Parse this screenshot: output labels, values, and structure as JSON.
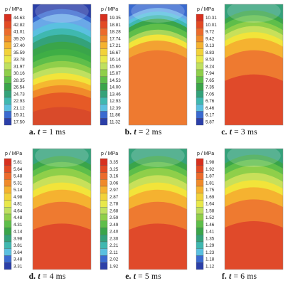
{
  "unit_label": "p / MPa",
  "panels": [
    {
      "caption": {
        "label": "a.",
        "t": "t",
        "eq": "= 1 ms"
      },
      "scale": [
        "44.63",
        "42.82",
        "41.01",
        "39.20",
        "37.40",
        "35.59",
        "33.78",
        "31.97",
        "30.16",
        "28.35",
        "26.54",
        "24.73",
        "22.93",
        "21.12",
        "19.31",
        "17.50"
      ],
      "bands": [
        {
          "color": "#d94a2a",
          "depth": 0.0
        },
        {
          "color": "#e65a26",
          "depth": 0.15
        },
        {
          "color": "#f08a2a",
          "depth": 0.27
        },
        {
          "color": "#f5b830",
          "depth": 0.33
        },
        {
          "color": "#f2e43a",
          "depth": 0.38
        },
        {
          "color": "#bfe060",
          "depth": 0.43
        },
        {
          "color": "#8fcf4a",
          "depth": 0.48
        },
        {
          "color": "#5ebe4a",
          "depth": 0.53
        },
        {
          "color": "#3fae45",
          "depth": 0.58
        },
        {
          "color": "#3aa54a",
          "depth": 0.63
        },
        {
          "color": "#34a27a",
          "depth": 0.69
        },
        {
          "color": "#3fb8b0",
          "depth": 0.75
        },
        {
          "color": "#5ac0e0",
          "depth": 0.8
        },
        {
          "color": "#6aa8e8",
          "depth": 0.85
        },
        {
          "color": "#3a6ad0",
          "depth": 0.92
        },
        {
          "color": "#2b3fa8",
          "depth": 0.96
        }
      ]
    },
    {
      "caption": {
        "label": "b.",
        "t": "t",
        "eq": "= 2 ms"
      },
      "scale": [
        "19.35",
        "18.81",
        "18.28",
        "17.74",
        "17.21",
        "16.67",
        "16.14",
        "15.60",
        "15.07",
        "14.53",
        "14.00",
        "13.46",
        "12.93",
        "12.39",
        "11.86",
        "11.32"
      ],
      "bands": [
        {
          "color": "#ee7a30",
          "depth": 0.0
        },
        {
          "color": "#f3a232",
          "depth": 0.62
        },
        {
          "color": "#f2e43a",
          "depth": 0.7
        },
        {
          "color": "#a8d65a",
          "depth": 0.75
        },
        {
          "color": "#5ebe4a",
          "depth": 0.79
        },
        {
          "color": "#3aa54a",
          "depth": 0.84
        },
        {
          "color": "#3fb8b0",
          "depth": 0.88
        },
        {
          "color": "#5ac0e0",
          "depth": 0.91
        },
        {
          "color": "#6aa8e8",
          "depth": 0.94
        },
        {
          "color": "#3a6ad0",
          "depth": 0.97
        }
      ]
    },
    {
      "caption": {
        "label": "c.",
        "t": "t",
        "eq": "= 3 ms"
      },
      "scale": [
        "10.31",
        "10.01",
        "9.72",
        "9.42",
        "9.13",
        "8.83",
        "8.53",
        "8.24",
        "7.94",
        "7.65",
        "7.35",
        "7.05",
        "6.76",
        "6.46",
        "6.17",
        "5.87"
      ],
      "bands": [
        {
          "color": "#e04a2a",
          "depth": 0.0
        },
        {
          "color": "#ee7a30",
          "depth": 0.42
        },
        {
          "color": "#f5b230",
          "depth": 0.62
        },
        {
          "color": "#f2e43a",
          "depth": 0.72
        },
        {
          "color": "#c8e05a",
          "depth": 0.77
        },
        {
          "color": "#8fcf4a",
          "depth": 0.82
        },
        {
          "color": "#5ebe4a",
          "depth": 0.86
        },
        {
          "color": "#3aa54a",
          "depth": 0.91
        },
        {
          "color": "#34a27a",
          "depth": 0.95
        }
      ]
    },
    {
      "caption": {
        "label": "d.",
        "t": "t",
        "eq": "= 4 ms"
      },
      "scale": [
        "5.81",
        "5.64",
        "5.48",
        "5.31",
        "5.14",
        "4.98",
        "4.81",
        "4.64",
        "4.48",
        "4.31",
        "4.14",
        "3.98",
        "3.81",
        "3.64",
        "3.48",
        "3.31"
      ],
      "bands": [
        {
          "color": "#e04a2a",
          "depth": 0.0
        },
        {
          "color": "#ee7a30",
          "depth": 0.38
        },
        {
          "color": "#f5b230",
          "depth": 0.56
        },
        {
          "color": "#f2e43a",
          "depth": 0.66
        },
        {
          "color": "#c8e05a",
          "depth": 0.72
        },
        {
          "color": "#8fcf4a",
          "depth": 0.78
        },
        {
          "color": "#5ebe4a",
          "depth": 0.84
        },
        {
          "color": "#3aa54a",
          "depth": 0.89
        },
        {
          "color": "#34a27a",
          "depth": 0.94
        }
      ]
    },
    {
      "caption": {
        "label": "e.",
        "t": "t",
        "eq": "= 5 ms"
      },
      "scale": [
        "3.35",
        "3.25",
        "3.16",
        "3.06",
        "2.97",
        "2.87",
        "2.78",
        "2.68",
        "2.59",
        "2.49",
        "2.40",
        "2.30",
        "2.21",
        "2.11",
        "2.02",
        "1.92"
      ],
      "bands": [
        {
          "color": "#e04a2a",
          "depth": 0.0
        },
        {
          "color": "#ee7a30",
          "depth": 0.38
        },
        {
          "color": "#f5b230",
          "depth": 0.56
        },
        {
          "color": "#f2e43a",
          "depth": 0.66
        },
        {
          "color": "#c8e05a",
          "depth": 0.72
        },
        {
          "color": "#8fcf4a",
          "depth": 0.78
        },
        {
          "color": "#5ebe4a",
          "depth": 0.84
        },
        {
          "color": "#3aa54a",
          "depth": 0.89
        },
        {
          "color": "#34a27a",
          "depth": 0.94
        }
      ]
    },
    {
      "caption": {
        "label": "f.",
        "t": "t",
        "eq": "= 6 ms"
      },
      "scale": [
        "1.98",
        "1.92",
        "1.87",
        "1.81",
        "1.75",
        "1.69",
        "1.64",
        "1.58",
        "1.52",
        "1.46",
        "1.41",
        "1.35",
        "1.29",
        "1.23",
        "1.18",
        "1.12"
      ],
      "bands": [
        {
          "color": "#e04a2a",
          "depth": 0.0
        },
        {
          "color": "#ee7a30",
          "depth": 0.4
        },
        {
          "color": "#f5b230",
          "depth": 0.58
        },
        {
          "color": "#f2e43a",
          "depth": 0.68
        },
        {
          "color": "#c8e05a",
          "depth": 0.74
        },
        {
          "color": "#8fcf4a",
          "depth": 0.8
        },
        {
          "color": "#5ebe4a",
          "depth": 0.86
        },
        {
          "color": "#3aa54a",
          "depth": 0.91
        },
        {
          "color": "#34a27a",
          "depth": 0.95
        }
      ]
    }
  ],
  "legend_colors": [
    "#d7301f",
    "#e34a24",
    "#ec6b2c",
    "#f08a2a",
    "#f5b230",
    "#f2d23a",
    "#e8e84a",
    "#bfe060",
    "#8fcf4a",
    "#5ebe4a",
    "#3aa54a",
    "#34a27a",
    "#3fb8b0",
    "#5ac0e0",
    "#3a6ad0",
    "#2b3fa8"
  ]
}
